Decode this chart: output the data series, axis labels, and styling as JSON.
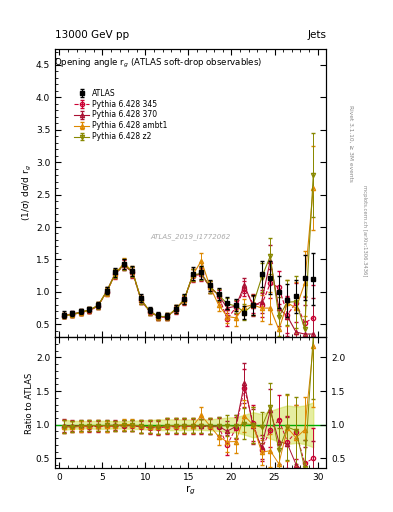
{
  "title_left": "13000 GeV pp",
  "title_right": "Jets",
  "right_label1": "Rivet 3.1.10, ≥ 3M events",
  "right_label2": "mcplots.cern.ch [arXiv:1306.3436]",
  "plot_title": "Opening angle r$_g$ (ATLAS soft-drop observables)",
  "xlabel": "r$_g$",
  "ylabel": "(1/σ) dσ/d r$_g$",
  "ylabel_ratio": "Ratio to ATLAS",
  "watermark": "ATLAS_2019_I1772062",
  "ylim_main": [
    0.3,
    4.75
  ],
  "ylim_ratio": [
    0.35,
    2.3
  ],
  "yticks_main": [
    0.5,
    1.0,
    1.5,
    2.0,
    2.5,
    3.0,
    3.5,
    4.0,
    4.5
  ],
  "yticks_ratio": [
    0.5,
    1.0,
    1.5,
    2.0
  ],
  "xlim": [
    -0.5,
    31.0
  ],
  "xticks": [
    0,
    5,
    10,
    15,
    20,
    25,
    30
  ],
  "atlas_x": [
    0.5,
    1.5,
    2.5,
    3.5,
    4.5,
    5.5,
    6.5,
    7.5,
    8.5,
    9.5,
    10.5,
    11.5,
    12.5,
    13.5,
    14.5,
    15.5,
    16.5,
    17.5,
    18.5,
    19.5,
    20.5,
    21.5,
    22.5,
    23.5,
    24.5,
    25.5,
    26.5,
    27.5,
    28.5,
    29.5
  ],
  "atlas_y": [
    0.65,
    0.67,
    0.7,
    0.73,
    0.8,
    1.02,
    1.3,
    1.43,
    1.32,
    0.9,
    0.72,
    0.64,
    0.63,
    0.74,
    0.89,
    1.28,
    1.3,
    1.1,
    0.97,
    0.83,
    0.8,
    0.68,
    0.8,
    1.27,
    1.22,
    1.0,
    0.87,
    0.93,
    1.22,
    1.2
  ],
  "atlas_yerr": [
    0.05,
    0.04,
    0.04,
    0.04,
    0.05,
    0.06,
    0.07,
    0.08,
    0.08,
    0.06,
    0.05,
    0.05,
    0.05,
    0.06,
    0.07,
    0.1,
    0.1,
    0.09,
    0.09,
    0.09,
    0.09,
    0.1,
    0.15,
    0.2,
    0.25,
    0.25,
    0.25,
    0.25,
    0.35,
    0.4
  ],
  "py345_x": [
    0.5,
    1.5,
    2.5,
    3.5,
    4.5,
    5.5,
    6.5,
    7.5,
    8.5,
    9.5,
    10.5,
    11.5,
    12.5,
    13.5,
    14.5,
    15.5,
    16.5,
    17.5,
    18.5,
    19.5,
    20.5,
    21.5,
    22.5,
    23.5,
    24.5,
    25.5,
    26.5,
    27.5,
    28.5,
    29.5
  ],
  "py345_y": [
    0.63,
    0.65,
    0.68,
    0.71,
    0.78,
    1.0,
    1.27,
    1.41,
    1.3,
    0.87,
    0.69,
    0.61,
    0.61,
    0.72,
    0.87,
    1.25,
    1.27,
    1.07,
    0.94,
    0.58,
    0.76,
    1.05,
    0.82,
    0.8,
    1.13,
    1.07,
    0.65,
    0.83,
    0.52,
    0.6
  ],
  "py345_yerr": [
    0.04,
    0.04,
    0.04,
    0.04,
    0.05,
    0.06,
    0.07,
    0.08,
    0.08,
    0.06,
    0.05,
    0.05,
    0.05,
    0.06,
    0.07,
    0.1,
    0.1,
    0.09,
    0.09,
    0.1,
    0.1,
    0.12,
    0.15,
    0.18,
    0.22,
    0.25,
    0.28,
    0.3,
    0.4,
    0.5
  ],
  "py370_x": [
    0.5,
    1.5,
    2.5,
    3.5,
    4.5,
    5.5,
    6.5,
    7.5,
    8.5,
    9.5,
    10.5,
    11.5,
    12.5,
    13.5,
    14.5,
    15.5,
    16.5,
    17.5,
    18.5,
    19.5,
    20.5,
    21.5,
    22.5,
    23.5,
    24.5,
    25.5,
    26.5,
    27.5,
    28.5,
    29.5
  ],
  "py370_y": [
    0.64,
    0.66,
    0.69,
    0.72,
    0.79,
    1.01,
    1.29,
    1.42,
    1.31,
    0.88,
    0.7,
    0.62,
    0.62,
    0.73,
    0.88,
    1.26,
    1.28,
    1.08,
    0.95,
    0.75,
    0.78,
    1.1,
    0.78,
    0.85,
    1.48,
    0.75,
    0.62,
    0.38,
    0.35,
    0.35
  ],
  "py370_yerr": [
    0.04,
    0.04,
    0.04,
    0.04,
    0.05,
    0.06,
    0.07,
    0.08,
    0.08,
    0.06,
    0.05,
    0.05,
    0.05,
    0.06,
    0.07,
    0.1,
    0.1,
    0.09,
    0.09,
    0.1,
    0.1,
    0.12,
    0.15,
    0.18,
    0.25,
    0.28,
    0.3,
    0.35,
    0.45,
    0.55
  ],
  "pyambt1_x": [
    0.5,
    1.5,
    2.5,
    3.5,
    4.5,
    5.5,
    6.5,
    7.5,
    8.5,
    9.5,
    10.5,
    11.5,
    12.5,
    13.5,
    14.5,
    15.5,
    16.5,
    17.5,
    18.5,
    19.5,
    20.5,
    21.5,
    22.5,
    23.5,
    24.5,
    25.5,
    26.5,
    27.5,
    28.5,
    29.5
  ],
  "pyambt1_y": [
    0.63,
    0.65,
    0.68,
    0.72,
    0.79,
    1.0,
    1.28,
    1.44,
    1.32,
    0.88,
    0.7,
    0.62,
    0.62,
    0.73,
    0.88,
    1.26,
    1.48,
    1.08,
    0.8,
    0.62,
    0.6,
    0.77,
    0.8,
    0.75,
    0.75,
    0.42,
    0.83,
    0.75,
    1.13,
    2.6
  ],
  "pyambt1_yerr": [
    0.04,
    0.04,
    0.04,
    0.04,
    0.05,
    0.06,
    0.07,
    0.08,
    0.08,
    0.06,
    0.05,
    0.05,
    0.05,
    0.06,
    0.07,
    0.1,
    0.12,
    0.09,
    0.1,
    0.1,
    0.12,
    0.12,
    0.15,
    0.2,
    0.25,
    0.3,
    0.35,
    0.4,
    0.5,
    0.65
  ],
  "pyz2_x": [
    0.5,
    1.5,
    2.5,
    3.5,
    4.5,
    5.5,
    6.5,
    7.5,
    8.5,
    9.5,
    10.5,
    11.5,
    12.5,
    13.5,
    14.5,
    15.5,
    16.5,
    17.5,
    18.5,
    19.5,
    20.5,
    21.5,
    22.5,
    23.5,
    24.5,
    25.5,
    26.5,
    27.5,
    28.5,
    29.5
  ],
  "pyz2_y": [
    0.63,
    0.65,
    0.69,
    0.72,
    0.79,
    1.01,
    1.28,
    1.42,
    1.31,
    0.88,
    0.7,
    0.62,
    0.62,
    0.73,
    0.88,
    1.26,
    1.28,
    1.08,
    0.95,
    0.82,
    0.78,
    0.69,
    0.8,
    1.22,
    1.55,
    0.62,
    0.84,
    0.85,
    0.43,
    2.8
  ],
  "pyz2_yerr": [
    0.04,
    0.04,
    0.04,
    0.04,
    0.05,
    0.06,
    0.07,
    0.08,
    0.08,
    0.06,
    0.05,
    0.05,
    0.05,
    0.06,
    0.07,
    0.1,
    0.1,
    0.09,
    0.09,
    0.09,
    0.1,
    0.12,
    0.15,
    0.22,
    0.28,
    0.3,
    0.35,
    0.4,
    0.5,
    0.65
  ],
  "color_atlas": "#000000",
  "color_py345": "#cc0033",
  "color_py370": "#aa1133",
  "color_pyambt1": "#dd8800",
  "color_pyz2": "#888800",
  "ratio_band_color": "#ccdd44",
  "ratio_band_alpha": 0.5
}
